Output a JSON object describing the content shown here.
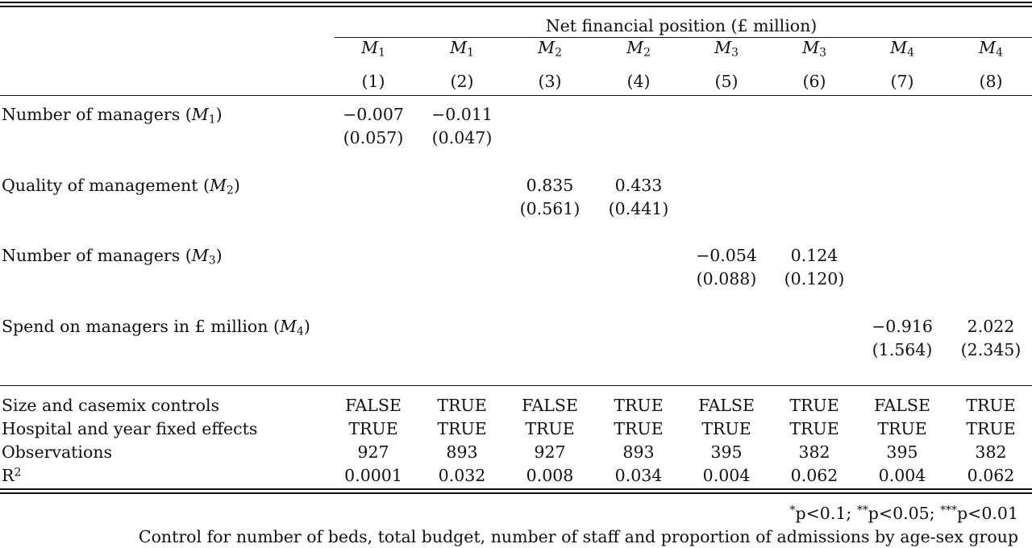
{
  "header": {
    "dependent_var": "Net financial position (£ million)",
    "model_labels": [
      {
        "base": "M",
        "sub": "1"
      },
      {
        "base": "M",
        "sub": "1"
      },
      {
        "base": "M",
        "sub": "2"
      },
      {
        "base": "M",
        "sub": "2"
      },
      {
        "base": "M",
        "sub": "3"
      },
      {
        "base": "M",
        "sub": "3"
      },
      {
        "base": "M",
        "sub": "4"
      },
      {
        "base": "M",
        "sub": "4"
      }
    ],
    "column_numbers": [
      "(1)",
      "(2)",
      "(3)",
      "(4)",
      "(5)",
      "(6)",
      "(7)",
      "(8)"
    ]
  },
  "rows": [
    {
      "label": "Number of managers (",
      "var": "M",
      "var_sub": "1",
      "label_end": ")",
      "cells": [
        {
          "col": 0,
          "coef": "−0.007",
          "se": "(0.057)"
        },
        {
          "col": 1,
          "coef": "−0.011",
          "se": "(0.047)"
        }
      ]
    },
    {
      "label": "Quality of management (",
      "var": "M",
      "var_sub": "2",
      "label_end": ")",
      "cells": [
        {
          "col": 2,
          "coef": "0.835",
          "se": "(0.561)"
        },
        {
          "col": 3,
          "coef": "0.433",
          "se": "(0.441)"
        }
      ]
    },
    {
      "label": "Number of managers (",
      "var": "M",
      "var_sub": "3",
      "label_end": ")",
      "cells": [
        {
          "col": 4,
          "coef": "−0.054",
          "se": "(0.088)"
        },
        {
          "col": 5,
          "coef": "0.124",
          "se": "(0.120)"
        }
      ]
    },
    {
      "label": "Spend on managers in £ million (",
      "var": "M",
      "var_sub": "4",
      "label_end": ")",
      "cells": [
        {
          "col": 6,
          "coef": "−0.916",
          "se": "(1.564)"
        },
        {
          "col": 7,
          "coef": "2.022",
          "se": "(2.345)"
        }
      ]
    }
  ],
  "stats": [
    {
      "label": "Size and casemix controls",
      "values": [
        "FALSE",
        "TRUE",
        "FALSE",
        "TRUE",
        "FALSE",
        "TRUE",
        "FALSE",
        "TRUE"
      ]
    },
    {
      "label": "Hospital and year fixed effects",
      "values": [
        "TRUE",
        "TRUE",
        "TRUE",
        "TRUE",
        "TRUE",
        "TRUE",
        "TRUE",
        "TRUE"
      ]
    },
    {
      "label": "Observations",
      "values": [
        "927",
        "893",
        "927",
        "893",
        "395",
        "382",
        "395",
        "382"
      ]
    },
    {
      "label": "R",
      "label_sup": "2",
      "values": [
        "0.0001",
        "0.032",
        "0.008",
        "0.034",
        "0.004",
        "0.062",
        "0.004",
        "0.062"
      ]
    }
  ],
  "notes": {
    "significance": [
      {
        "stars": "*",
        "text": "p<0.1; "
      },
      {
        "stars": "**",
        "text": "p<0.05; "
      },
      {
        "stars": "***",
        "text": "p<0.01"
      }
    ],
    "controls": "Control for number of beds, total budget, number of staff and proportion of admissions by age-sex group"
  }
}
